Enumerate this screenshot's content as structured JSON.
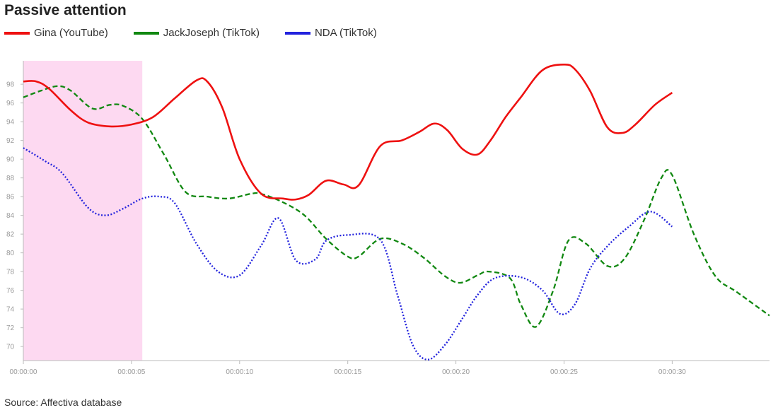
{
  "header": {
    "title": "Passive attention"
  },
  "footer": {
    "source": "Source: Affectiva database"
  },
  "chart_data": {
    "type": "line",
    "title": "Passive attention",
    "xlabel": "",
    "ylabel": "",
    "xlim": [
      0,
      34.5
    ],
    "ylim": [
      68.5,
      100.5
    ],
    "yticks": [
      70,
      72,
      74,
      76,
      78,
      80,
      82,
      84,
      86,
      88,
      90,
      92,
      94,
      96,
      98
    ],
    "yticklabels": [
      "70",
      "72",
      "74",
      "76",
      "78",
      "80",
      "82",
      "84",
      "86",
      "88",
      "90",
      "92",
      "94",
      "96",
      "98"
    ],
    "xticks": [
      0,
      5,
      10,
      15,
      20,
      25,
      30
    ],
    "xticklabels": [
      "00:00:00",
      "00:00:05",
      "00:00:10",
      "00:00:15",
      "00:00:20",
      "00:00:25",
      "00:00:30"
    ],
    "grid": false,
    "legend_position": "top-left",
    "highlight_region": {
      "x": [
        0,
        5.5
      ],
      "color": "#fdd9f1"
    },
    "series": [
      {
        "name": "Gina (YouTube)",
        "color": "#ee1111",
        "style": "solid",
        "x": [
          0,
          0.6,
          1.2,
          2.2,
          3.0,
          4.0,
          5.0,
          6.0,
          7.0,
          8.0,
          8.5,
          9.2,
          10.0,
          11.0,
          12.0,
          12.6,
          13.2,
          14.0,
          14.8,
          15.5,
          16.5,
          17.5,
          18.3,
          19.0,
          19.6,
          20.3,
          21.0,
          21.6,
          22.3,
          23.0,
          24.0,
          25.0,
          25.5,
          26.2,
          27.0,
          27.7,
          28.3,
          29.2,
          30.0
        ],
        "y": [
          98.3,
          98.3,
          97.5,
          95.2,
          93.9,
          93.5,
          93.7,
          94.5,
          96.5,
          98.4,
          98.3,
          95.5,
          90.0,
          86.3,
          85.8,
          85.7,
          86.2,
          87.7,
          87.3,
          87.2,
          91.4,
          92.0,
          92.9,
          93.8,
          93.1,
          91.1,
          90.5,
          92.0,
          94.5,
          96.6,
          99.5,
          100.1,
          99.6,
          97.3,
          93.4,
          92.8,
          93.7,
          95.8,
          97.1
        ]
      },
      {
        "name": "JackJoseph (TikTok)",
        "color": "#118811",
        "style": "dashed",
        "x": [
          0,
          0.8,
          1.6,
          2.2,
          3.2,
          4.0,
          4.6,
          5.5,
          6.5,
          7.5,
          8.5,
          9.5,
          10.5,
          11.0,
          12.0,
          13.0,
          14.0,
          15.0,
          15.5,
          16.5,
          17.5,
          18.5,
          19.5,
          20.2,
          21.0,
          21.5,
          22.5,
          23.0,
          23.7,
          24.5,
          25.2,
          26.0,
          27.0,
          27.8,
          28.7,
          29.5,
          30.0,
          31.0,
          32.0,
          33.0,
          34.5
        ],
        "y": [
          96.6,
          97.3,
          97.8,
          97.3,
          95.4,
          95.8,
          95.7,
          94.3,
          90.5,
          86.5,
          86.0,
          85.8,
          86.3,
          86.3,
          85.4,
          84.0,
          81.5,
          79.6,
          79.6,
          81.5,
          81.0,
          79.5,
          77.5,
          76.8,
          77.6,
          78.0,
          77.3,
          74.5,
          72.1,
          76.0,
          81.3,
          81.0,
          78.6,
          79.4,
          83.5,
          88.0,
          88.3,
          82.0,
          77.5,
          75.8,
          73.3
        ]
      },
      {
        "name": "NDA (TikTok)",
        "color": "#2222dd",
        "style": "dotted",
        "x": [
          0,
          1.0,
          1.8,
          3.0,
          3.8,
          4.6,
          5.5,
          6.3,
          7.0,
          8.0,
          9.0,
          10.0,
          11.0,
          11.8,
          12.6,
          13.5,
          14.0,
          15.0,
          16.5,
          17.3,
          18.0,
          18.7,
          19.5,
          20.3,
          21.0,
          21.8,
          23.0,
          24.0,
          24.8,
          25.5,
          26.2,
          27.0,
          28.0,
          29.0,
          30.0
        ],
        "y": [
          91.2,
          89.8,
          88.5,
          84.8,
          84.0,
          84.7,
          85.8,
          86.0,
          85.3,
          81.0,
          78.0,
          77.6,
          80.8,
          83.7,
          79.2,
          79.3,
          81.3,
          81.9,
          81.4,
          75.5,
          70.2,
          68.6,
          70.2,
          73.0,
          75.5,
          77.3,
          77.4,
          76.0,
          73.5,
          74.5,
          78.3,
          80.7,
          82.8,
          84.4,
          82.8
        ]
      }
    ]
  }
}
